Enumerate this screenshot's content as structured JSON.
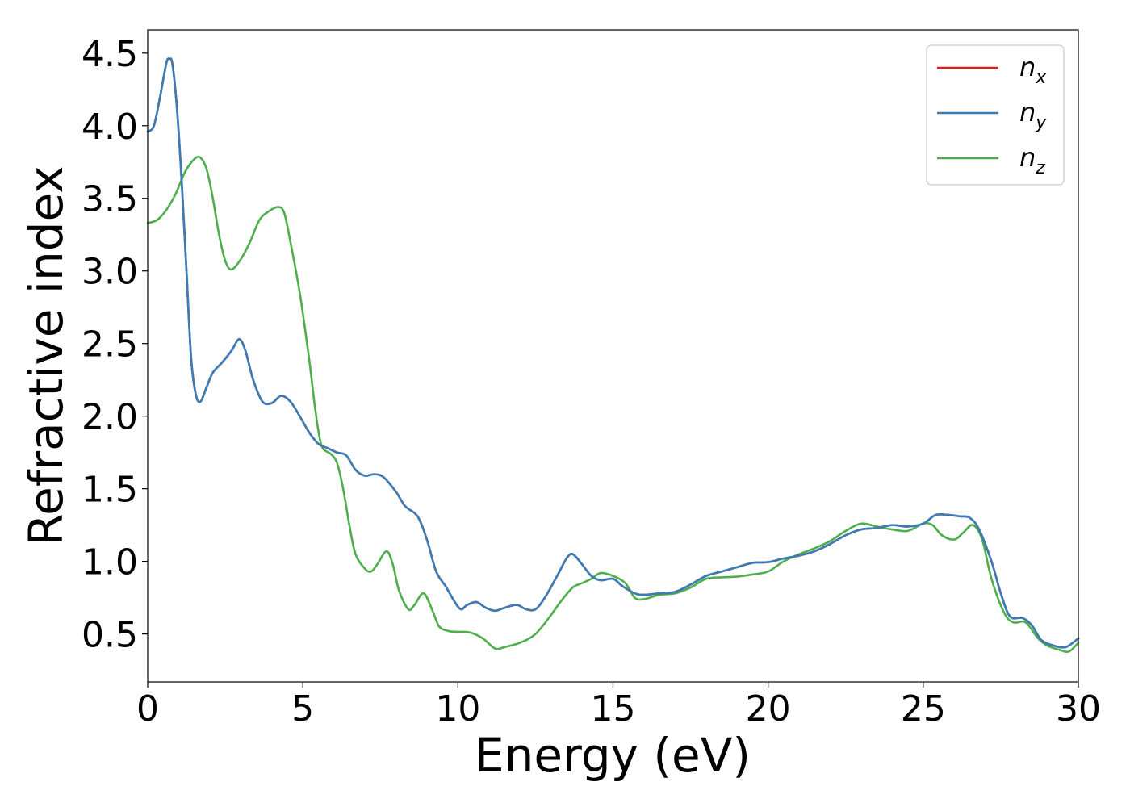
{
  "chart_data": {
    "type": "line",
    "title": "",
    "xlabel": "Energy (eV)",
    "ylabel": "Refractive index",
    "xlim": [
      0,
      30
    ],
    "ylim": [
      0.17,
      4.66
    ],
    "xticks": [
      0,
      5,
      10,
      15,
      20,
      25,
      30
    ],
    "yticks": [
      0.5,
      1.0,
      1.5,
      2.0,
      2.5,
      3.0,
      3.5,
      4.0,
      4.5
    ],
    "xtick_labels": [
      "0",
      "5",
      "10",
      "15",
      "20",
      "25",
      "30"
    ],
    "ytick_labels": [
      "0.5",
      "1.0",
      "1.5",
      "2.0",
      "2.5",
      "3.0",
      "3.5",
      "4.0",
      "4.5"
    ],
    "grid": false,
    "legend_position": "top-right",
    "series": [
      {
        "name": "n_x",
        "legend_base": "n",
        "legend_sub": "x",
        "color": "#e41a1c",
        "points": [
          [
            0,
            3.96
          ],
          [
            0.2,
            4.0
          ],
          [
            0.4,
            4.2
          ],
          [
            0.6,
            4.43
          ],
          [
            0.7,
            4.46
          ],
          [
            0.8,
            4.42
          ],
          [
            0.95,
            4.1
          ],
          [
            1.1,
            3.6
          ],
          [
            1.25,
            3.0
          ],
          [
            1.4,
            2.4
          ],
          [
            1.55,
            2.15
          ],
          [
            1.7,
            2.1
          ],
          [
            1.9,
            2.2
          ],
          [
            2.1,
            2.3
          ],
          [
            2.4,
            2.37
          ],
          [
            2.7,
            2.45
          ],
          [
            2.95,
            2.53
          ],
          [
            3.15,
            2.45
          ],
          [
            3.4,
            2.25
          ],
          [
            3.7,
            2.1
          ],
          [
            4.0,
            2.09
          ],
          [
            4.3,
            2.14
          ],
          [
            4.6,
            2.1
          ],
          [
            4.9,
            2.0
          ],
          [
            5.2,
            1.89
          ],
          [
            5.5,
            1.81
          ],
          [
            5.8,
            1.78
          ],
          [
            6.1,
            1.75
          ],
          [
            6.4,
            1.73
          ],
          [
            6.7,
            1.63
          ],
          [
            7.0,
            1.59
          ],
          [
            7.3,
            1.6
          ],
          [
            7.6,
            1.58
          ],
          [
            8.0,
            1.48
          ],
          [
            8.3,
            1.38
          ],
          [
            8.7,
            1.31
          ],
          [
            9.0,
            1.15
          ],
          [
            9.3,
            0.93
          ],
          [
            9.6,
            0.83
          ],
          [
            9.9,
            0.72
          ],
          [
            10.1,
            0.67
          ],
          [
            10.3,
            0.7
          ],
          [
            10.6,
            0.72
          ],
          [
            10.9,
            0.68
          ],
          [
            11.2,
            0.66
          ],
          [
            11.5,
            0.68
          ],
          [
            11.9,
            0.7
          ],
          [
            12.2,
            0.67
          ],
          [
            12.5,
            0.67
          ],
          [
            12.8,
            0.75
          ],
          [
            13.2,
            0.9
          ],
          [
            13.5,
            1.02
          ],
          [
            13.7,
            1.05
          ],
          [
            14.0,
            0.98
          ],
          [
            14.3,
            0.9
          ],
          [
            14.6,
            0.87
          ],
          [
            15.0,
            0.88
          ],
          [
            15.3,
            0.83
          ],
          [
            15.7,
            0.78
          ],
          [
            16.0,
            0.77
          ],
          [
            16.5,
            0.78
          ],
          [
            17.0,
            0.79
          ],
          [
            17.5,
            0.84
          ],
          [
            18.0,
            0.9
          ],
          [
            18.5,
            0.93
          ],
          [
            19.0,
            0.96
          ],
          [
            19.5,
            0.99
          ],
          [
            20.0,
            0.995
          ],
          [
            20.5,
            1.02
          ],
          [
            21.0,
            1.04
          ],
          [
            21.5,
            1.07
          ],
          [
            22.0,
            1.12
          ],
          [
            22.5,
            1.18
          ],
          [
            23.0,
            1.22
          ],
          [
            23.5,
            1.23
          ],
          [
            24.0,
            1.25
          ],
          [
            24.5,
            1.24
          ],
          [
            25.0,
            1.26
          ],
          [
            25.4,
            1.32
          ],
          [
            25.8,
            1.32
          ],
          [
            26.2,
            1.31
          ],
          [
            26.5,
            1.3
          ],
          [
            26.8,
            1.22
          ],
          [
            27.2,
            1.0
          ],
          [
            27.5,
            0.78
          ],
          [
            27.8,
            0.62
          ],
          [
            28.2,
            0.61
          ],
          [
            28.5,
            0.56
          ],
          [
            28.8,
            0.46
          ],
          [
            29.2,
            0.42
          ],
          [
            29.6,
            0.41
          ],
          [
            30,
            0.47
          ]
        ]
      },
      {
        "name": "n_y",
        "legend_base": "n",
        "legend_sub": "y",
        "color": "#377eb8",
        "points": [
          [
            0,
            3.96
          ],
          [
            0.2,
            4.0
          ],
          [
            0.4,
            4.2
          ],
          [
            0.6,
            4.43
          ],
          [
            0.7,
            4.46
          ],
          [
            0.8,
            4.42
          ],
          [
            0.95,
            4.1
          ],
          [
            1.1,
            3.6
          ],
          [
            1.25,
            3.0
          ],
          [
            1.4,
            2.4
          ],
          [
            1.55,
            2.15
          ],
          [
            1.7,
            2.1
          ],
          [
            1.9,
            2.2
          ],
          [
            2.1,
            2.3
          ],
          [
            2.4,
            2.37
          ],
          [
            2.7,
            2.45
          ],
          [
            2.95,
            2.53
          ],
          [
            3.15,
            2.45
          ],
          [
            3.4,
            2.25
          ],
          [
            3.7,
            2.1
          ],
          [
            4.0,
            2.09
          ],
          [
            4.3,
            2.14
          ],
          [
            4.6,
            2.1
          ],
          [
            4.9,
            2.0
          ],
          [
            5.2,
            1.89
          ],
          [
            5.5,
            1.81
          ],
          [
            5.8,
            1.78
          ],
          [
            6.1,
            1.75
          ],
          [
            6.4,
            1.73
          ],
          [
            6.7,
            1.63
          ],
          [
            7.0,
            1.59
          ],
          [
            7.3,
            1.6
          ],
          [
            7.6,
            1.58
          ],
          [
            8.0,
            1.48
          ],
          [
            8.3,
            1.38
          ],
          [
            8.7,
            1.31
          ],
          [
            9.0,
            1.15
          ],
          [
            9.3,
            0.93
          ],
          [
            9.6,
            0.83
          ],
          [
            9.9,
            0.72
          ],
          [
            10.1,
            0.67
          ],
          [
            10.3,
            0.7
          ],
          [
            10.6,
            0.72
          ],
          [
            10.9,
            0.68
          ],
          [
            11.2,
            0.66
          ],
          [
            11.5,
            0.68
          ],
          [
            11.9,
            0.7
          ],
          [
            12.2,
            0.67
          ],
          [
            12.5,
            0.67
          ],
          [
            12.8,
            0.75
          ],
          [
            13.2,
            0.9
          ],
          [
            13.5,
            1.02
          ],
          [
            13.7,
            1.05
          ],
          [
            14.0,
            0.98
          ],
          [
            14.3,
            0.9
          ],
          [
            14.6,
            0.87
          ],
          [
            15.0,
            0.88
          ],
          [
            15.3,
            0.83
          ],
          [
            15.7,
            0.78
          ],
          [
            16.0,
            0.77
          ],
          [
            16.5,
            0.78
          ],
          [
            17.0,
            0.79
          ],
          [
            17.5,
            0.84
          ],
          [
            18.0,
            0.9
          ],
          [
            18.5,
            0.93
          ],
          [
            19.0,
            0.96
          ],
          [
            19.5,
            0.99
          ],
          [
            20.0,
            0.995
          ],
          [
            20.5,
            1.02
          ],
          [
            21.0,
            1.04
          ],
          [
            21.5,
            1.07
          ],
          [
            22.0,
            1.12
          ],
          [
            22.5,
            1.18
          ],
          [
            23.0,
            1.22
          ],
          [
            23.5,
            1.23
          ],
          [
            24.0,
            1.25
          ],
          [
            24.5,
            1.24
          ],
          [
            25.0,
            1.26
          ],
          [
            25.4,
            1.32
          ],
          [
            25.8,
            1.32
          ],
          [
            26.2,
            1.31
          ],
          [
            26.5,
            1.3
          ],
          [
            26.8,
            1.22
          ],
          [
            27.2,
            1.0
          ],
          [
            27.5,
            0.78
          ],
          [
            27.8,
            0.62
          ],
          [
            28.2,
            0.61
          ],
          [
            28.5,
            0.56
          ],
          [
            28.8,
            0.46
          ],
          [
            29.2,
            0.42
          ],
          [
            29.6,
            0.41
          ],
          [
            30,
            0.47
          ]
        ]
      },
      {
        "name": "n_z",
        "legend_base": "n",
        "legend_sub": "z",
        "color": "#4daf4a",
        "points": [
          [
            0,
            3.33
          ],
          [
            0.3,
            3.35
          ],
          [
            0.6,
            3.42
          ],
          [
            0.9,
            3.53
          ],
          [
            1.2,
            3.68
          ],
          [
            1.5,
            3.77
          ],
          [
            1.7,
            3.78
          ],
          [
            1.9,
            3.7
          ],
          [
            2.1,
            3.5
          ],
          [
            2.3,
            3.25
          ],
          [
            2.5,
            3.07
          ],
          [
            2.7,
            3.01
          ],
          [
            3.0,
            3.08
          ],
          [
            3.3,
            3.2
          ],
          [
            3.6,
            3.35
          ],
          [
            3.9,
            3.41
          ],
          [
            4.2,
            3.44
          ],
          [
            4.4,
            3.4
          ],
          [
            4.6,
            3.2
          ],
          [
            4.9,
            2.85
          ],
          [
            5.2,
            2.4
          ],
          [
            5.4,
            2.05
          ],
          [
            5.6,
            1.8
          ],
          [
            5.9,
            1.74
          ],
          [
            6.1,
            1.68
          ],
          [
            6.3,
            1.5
          ],
          [
            6.5,
            1.25
          ],
          [
            6.7,
            1.05
          ],
          [
            7.0,
            0.95
          ],
          [
            7.2,
            0.93
          ],
          [
            7.4,
            0.98
          ],
          [
            7.7,
            1.07
          ],
          [
            7.9,
            0.98
          ],
          [
            8.1,
            0.8
          ],
          [
            8.4,
            0.67
          ],
          [
            8.6,
            0.7
          ],
          [
            8.9,
            0.78
          ],
          [
            9.2,
            0.65
          ],
          [
            9.4,
            0.55
          ],
          [
            9.7,
            0.52
          ],
          [
            10.0,
            0.515
          ],
          [
            10.4,
            0.51
          ],
          [
            10.8,
            0.47
          ],
          [
            11.2,
            0.4
          ],
          [
            11.5,
            0.41
          ],
          [
            12.0,
            0.44
          ],
          [
            12.5,
            0.5
          ],
          [
            13.0,
            0.63
          ],
          [
            13.3,
            0.72
          ],
          [
            13.7,
            0.82
          ],
          [
            14.0,
            0.85
          ],
          [
            14.3,
            0.88
          ],
          [
            14.6,
            0.92
          ],
          [
            15.0,
            0.9
          ],
          [
            15.4,
            0.85
          ],
          [
            15.7,
            0.75
          ],
          [
            16.0,
            0.74
          ],
          [
            16.5,
            0.77
          ],
          [
            17.0,
            0.78
          ],
          [
            17.5,
            0.82
          ],
          [
            18.0,
            0.88
          ],
          [
            18.5,
            0.89
          ],
          [
            19.0,
            0.895
          ],
          [
            19.5,
            0.91
          ],
          [
            20.0,
            0.93
          ],
          [
            20.5,
            1.0
          ],
          [
            21.0,
            1.05
          ],
          [
            21.5,
            1.09
          ],
          [
            22.0,
            1.14
          ],
          [
            22.5,
            1.21
          ],
          [
            23.0,
            1.26
          ],
          [
            23.5,
            1.24
          ],
          [
            24.0,
            1.22
          ],
          [
            24.5,
            1.21
          ],
          [
            25.0,
            1.26
          ],
          [
            25.3,
            1.25
          ],
          [
            25.6,
            1.18
          ],
          [
            26.0,
            1.15
          ],
          [
            26.3,
            1.2
          ],
          [
            26.6,
            1.25
          ],
          [
            26.9,
            1.15
          ],
          [
            27.2,
            0.88
          ],
          [
            27.6,
            0.65
          ],
          [
            27.9,
            0.58
          ],
          [
            28.3,
            0.58
          ],
          [
            28.7,
            0.47
          ],
          [
            29.0,
            0.42
          ],
          [
            29.4,
            0.39
          ],
          [
            29.7,
            0.38
          ],
          [
            30,
            0.44
          ]
        ]
      }
    ]
  }
}
